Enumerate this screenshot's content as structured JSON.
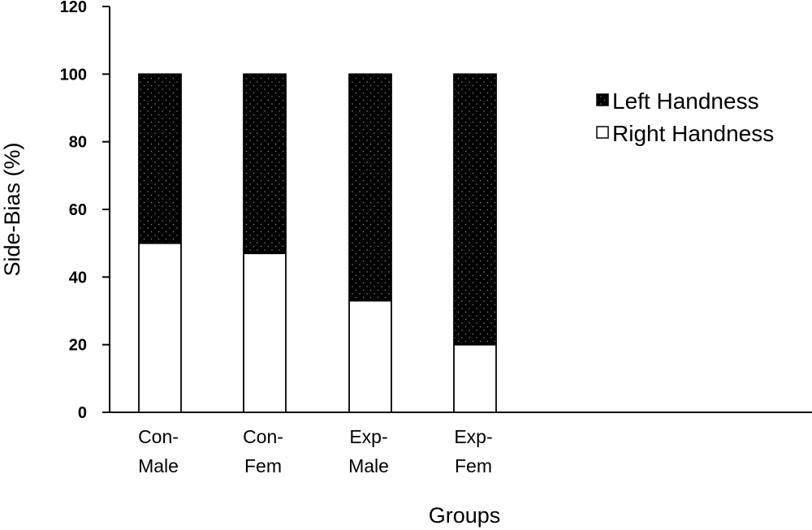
{
  "chart_data": {
    "type": "bar",
    "stacked": true,
    "title": "",
    "xlabel": "Groups",
    "ylabel": "Side-Bias (%)",
    "ylim": [
      0,
      120
    ],
    "yticks": [
      0,
      20,
      40,
      60,
      80,
      100,
      120
    ],
    "categories": [
      [
        "Con-",
        "Male"
      ],
      [
        "Con-",
        "Fem"
      ],
      [
        "Exp-",
        "Male"
      ],
      [
        "Exp-",
        "Fem"
      ]
    ],
    "series": [
      {
        "name": "Right Handness",
        "values": [
          50,
          47,
          33,
          20
        ],
        "color": "#ffffff",
        "pattern": "none"
      },
      {
        "name": "Left Handness",
        "values": [
          50,
          53,
          67,
          80
        ],
        "color": "#000000",
        "pattern": "dotted"
      }
    ],
    "legend": {
      "placement": "top-right",
      "order": [
        "Left Handness",
        "Right Handness"
      ]
    },
    "grid": false
  }
}
